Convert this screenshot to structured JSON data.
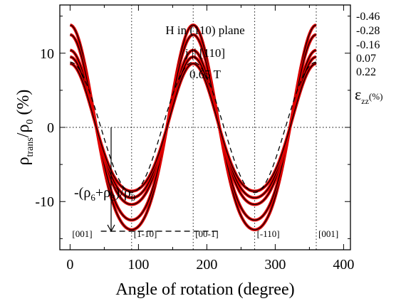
{
  "chart_data": {
    "type": "line",
    "xlabel": "Angle of rotation (degree)",
    "ylabel_main": "ρ",
    "ylabel_sub1": "trans",
    "ylabel_mid": "/ρ",
    "ylabel_sub2": "0",
    "ylabel_end": " (%)",
    "xlim": [
      -15,
      410
    ],
    "ylim": [
      -16.5,
      16.5
    ],
    "x_ticks": [
      0,
      100,
      200,
      300,
      400
    ],
    "y_ticks": [
      -10,
      0,
      10
    ],
    "vertical_reference_lines": [
      90,
      180,
      270,
      360
    ],
    "grid": false,
    "annotations": {
      "line1": "H in (110) plane",
      "line2": "j || [110]",
      "line3": "0.65 T"
    },
    "formula": {
      "prefix": "-(ρ",
      "sub1": "6",
      "mid": "+ρ",
      "sub2": "8",
      "after": ")/ρ",
      "sub3": "0"
    },
    "directions": [
      "[001]",
      "[1-10]",
      "[00-1]",
      "[-110]",
      "[001]"
    ],
    "direction_angles": [
      0,
      90,
      180,
      270,
      360
    ],
    "epsilon_label": {
      "symbol": "ε",
      "sub": "zz",
      "unit": "(%)"
    },
    "strain_label_values": [
      "-0.46",
      "-0.28",
      "-0.16",
      "0.07",
      "0.22"
    ],
    "series": [
      {
        "strain": "-0.46",
        "amplitude_at_0": 13.8,
        "minimum_at_180": -13.8
      },
      {
        "strain": "-0.28",
        "amplitude_at_0": 12.5,
        "minimum_at_180": -12.5
      },
      {
        "strain": "-0.16",
        "amplitude_at_0": 10.4,
        "minimum_at_180": -10.4
      },
      {
        "strain": "0.07",
        "amplitude_at_0": 9.5,
        "minimum_at_180": -9.5
      },
      {
        "strain": "0.22",
        "amplitude_at_0": 8.6,
        "minimum_at_180": -8.6
      }
    ],
    "dashed_reference_amplitude": 8.8,
    "cos4_fraction": 0.12,
    "vertical_arrow_x": 60,
    "horizontal_dashed_level": -14,
    "colors": {
      "data": "#e00000",
      "fit": "#000000",
      "reference": "#000000"
    }
  }
}
